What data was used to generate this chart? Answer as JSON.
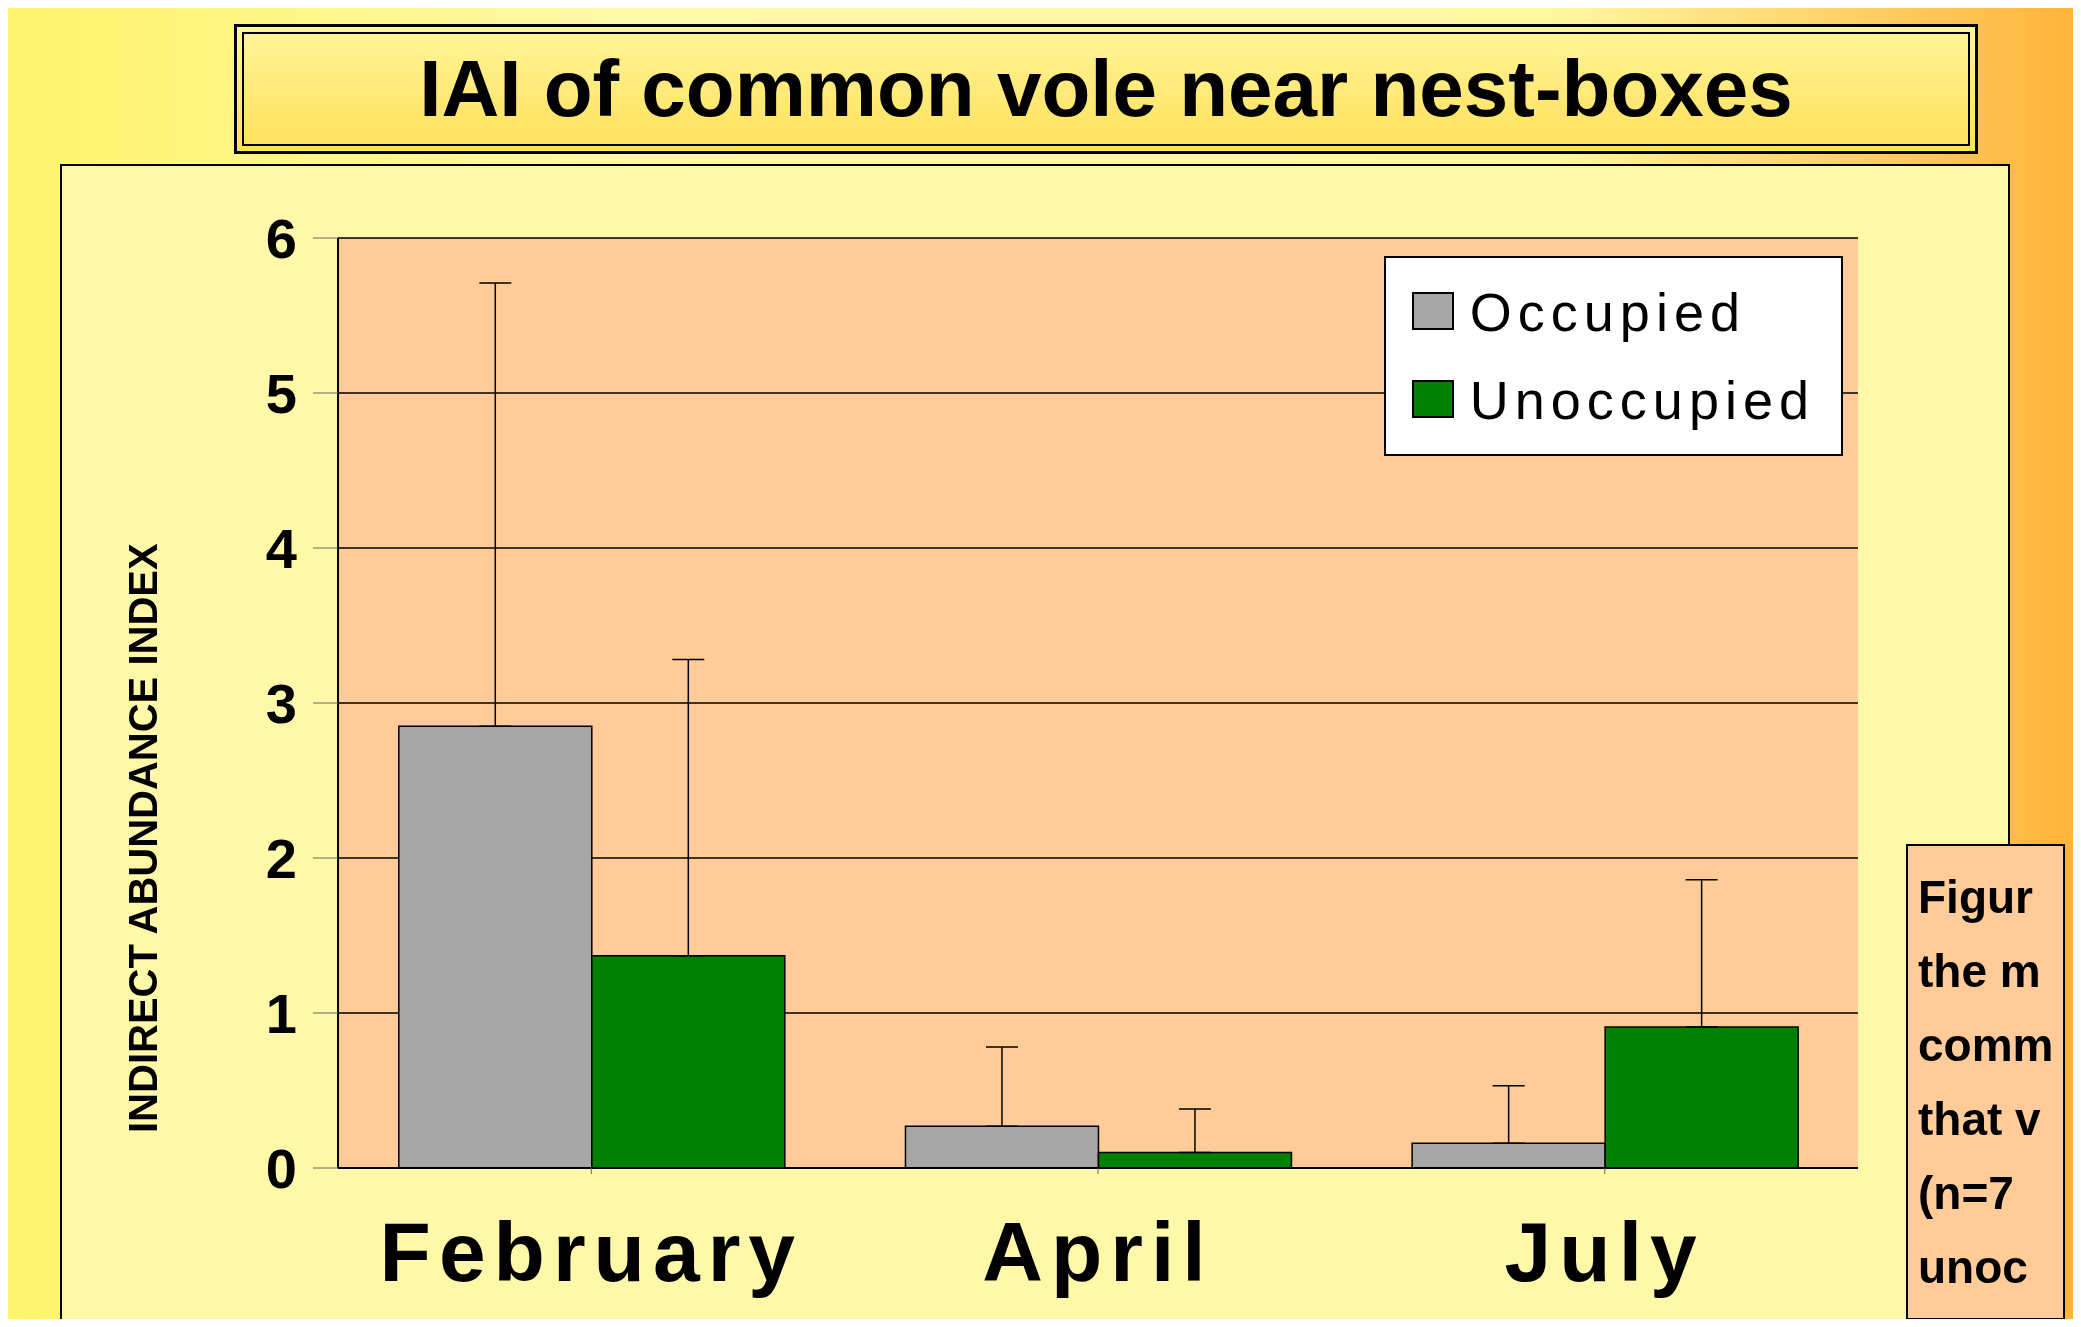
{
  "chart_data": {
    "type": "bar",
    "title": "IAI of common vole near nest-boxes",
    "ylabel": "INDIRECT ABUNDANCE INDEX",
    "categories": [
      "February",
      "April",
      "July"
    ],
    "series": [
      {
        "name": "Occupied",
        "color": "#a6a6a6",
        "values": [
          2.85,
          0.27,
          0.16
        ],
        "errors": [
          [
            2.85,
            5.71
          ],
          [
            0.27,
            0.78
          ],
          [
            0.16,
            0.53
          ]
        ]
      },
      {
        "name": "Unoccupied",
        "color": "#008000",
        "values": [
          1.37,
          0.1,
          0.91
        ],
        "errors": [
          [
            1.37,
            3.28
          ],
          [
            0.1,
            0.38
          ],
          [
            0.91,
            1.86
          ]
        ]
      }
    ],
    "ylim": [
      0,
      6
    ],
    "yticks": [
      0,
      1,
      2,
      3,
      4,
      5,
      6
    ],
    "grid": "y",
    "legend": "top right",
    "annotations": [
      "Figur\nthe m\ncomm\nthat v\n(n=7\nunoc"
    ]
  }
}
